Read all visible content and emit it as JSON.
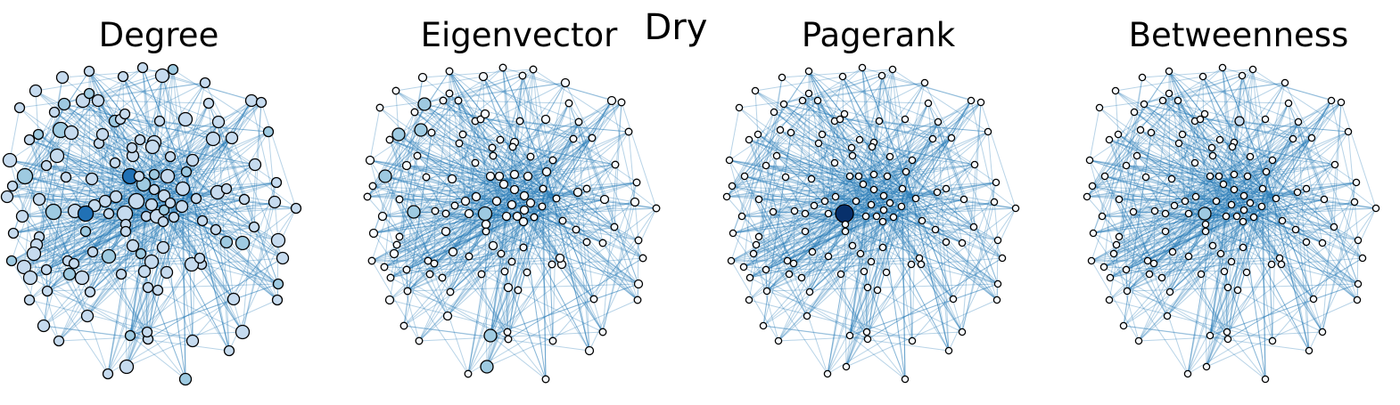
{
  "figure": {
    "suptitle": "Dry",
    "panels": [
      {
        "title": "Degree"
      },
      {
        "title": "Eigenvector"
      },
      {
        "title": "Pagerank"
      },
      {
        "title": "Betweenness"
      }
    ]
  },
  "style": {
    "edge_color": "#1f77b4",
    "node_outline": "#000000",
    "node_colormap": [
      "#f7fbff",
      "#c6dbef",
      "#9ecae1",
      "#6baed6",
      "#2171b5",
      "#08306b"
    ],
    "background": "#ffffff"
  }
}
